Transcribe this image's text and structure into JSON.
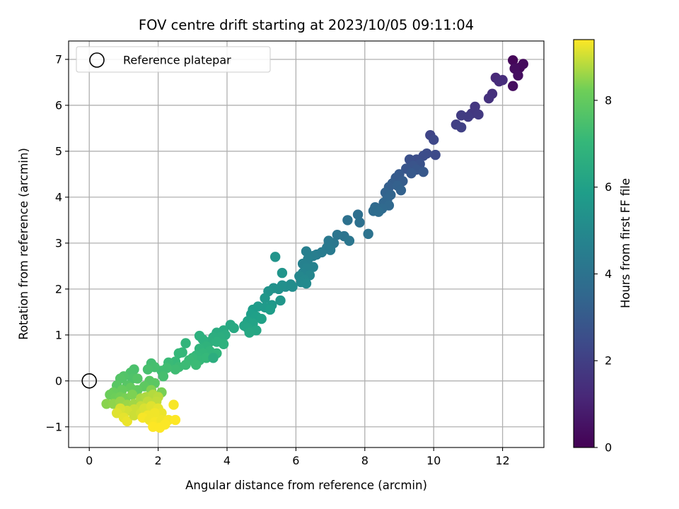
{
  "chart_data": {
    "type": "scatter",
    "title": "FOV centre drift starting at 2023/10/05 09:11:04",
    "xlabel": "Angular distance from reference (arcmin)",
    "ylabel": "Rotation from reference (arcmin)",
    "xlim": [
      -0.6,
      13.2
    ],
    "ylim": [
      -1.45,
      7.4
    ],
    "xticks": [
      0,
      2,
      4,
      6,
      8,
      10,
      12
    ],
    "yticks": [
      -1,
      0,
      1,
      2,
      3,
      4,
      5,
      6,
      7
    ],
    "grid": true,
    "legend": {
      "placement": "top-left",
      "entries": [
        "Reference platepar"
      ]
    },
    "reference_point": {
      "x": 0,
      "y": 0
    },
    "colorbar": {
      "label": "Hours from first FF file",
      "colormap": "viridis",
      "range": [
        0,
        9.4
      ],
      "ticks": [
        0,
        2,
        4,
        6,
        8
      ]
    },
    "series": [
      {
        "points": [
          [
            12.3,
            6.98
          ],
          [
            12.5,
            6.82
          ],
          [
            12.6,
            6.9
          ],
          [
            12.35,
            6.8
          ],
          [
            12.45,
            6.65
          ],
          [
            12.3,
            6.42
          ],
          [
            11.8,
            6.6
          ],
          [
            11.9,
            6.52
          ],
          [
            12.0,
            6.55
          ],
          [
            11.7,
            6.25
          ],
          [
            11.6,
            6.15
          ],
          [
            11.2,
            5.97
          ],
          [
            11.1,
            5.82
          ],
          [
            11.3,
            5.8
          ],
          [
            11.0,
            5.75
          ],
          [
            10.8,
            5.78
          ],
          [
            10.65,
            5.58
          ],
          [
            10.8,
            5.52
          ],
          [
            9.9,
            5.35
          ],
          [
            10.0,
            5.25
          ],
          [
            10.05,
            4.92
          ],
          [
            9.8,
            4.95
          ],
          [
            9.7,
            4.9
          ],
          [
            9.5,
            4.82
          ],
          [
            9.3,
            4.82
          ],
          [
            9.6,
            4.72
          ],
          [
            9.4,
            4.68
          ],
          [
            9.2,
            4.62
          ],
          [
            9.5,
            4.6
          ],
          [
            9.7,
            4.55
          ],
          [
            9.35,
            4.52
          ],
          [
            9.0,
            4.5
          ],
          [
            8.9,
            4.42
          ],
          [
            9.1,
            4.35
          ],
          [
            8.8,
            4.3
          ],
          [
            8.7,
            4.22
          ],
          [
            8.95,
            4.25
          ],
          [
            9.05,
            4.15
          ],
          [
            8.6,
            4.1
          ],
          [
            8.75,
            4.05
          ],
          [
            8.65,
            3.95
          ],
          [
            8.55,
            3.88
          ],
          [
            8.7,
            3.82
          ],
          [
            8.5,
            3.75
          ],
          [
            8.3,
            3.78
          ],
          [
            8.25,
            3.7
          ],
          [
            8.4,
            3.68
          ],
          [
            7.8,
            3.62
          ],
          [
            7.85,
            3.45
          ],
          [
            7.5,
            3.5
          ],
          [
            8.1,
            3.2
          ],
          [
            7.4,
            3.15
          ],
          [
            7.2,
            3.18
          ],
          [
            7.55,
            3.05
          ],
          [
            7.1,
            3.0
          ],
          [
            6.95,
            3.05
          ],
          [
            6.9,
            2.9
          ],
          [
            7.0,
            2.85
          ],
          [
            6.75,
            2.8
          ],
          [
            6.6,
            2.75
          ],
          [
            6.5,
            2.72
          ],
          [
            6.3,
            2.82
          ],
          [
            6.35,
            2.65
          ],
          [
            6.2,
            2.55
          ],
          [
            6.5,
            2.48
          ],
          [
            6.3,
            2.45
          ],
          [
            6.2,
            2.35
          ],
          [
            6.4,
            2.3
          ],
          [
            6.1,
            2.28
          ],
          [
            6.25,
            2.2
          ],
          [
            6.15,
            2.15
          ],
          [
            6.3,
            2.12
          ],
          [
            5.85,
            2.1
          ],
          [
            5.9,
            2.05
          ],
          [
            5.7,
            2.05
          ],
          [
            5.6,
            2.08
          ],
          [
            5.5,
            2.0
          ],
          [
            5.35,
            2.02
          ],
          [
            5.2,
            1.95
          ],
          [
            5.4,
            2.7
          ],
          [
            5.6,
            2.35
          ],
          [
            5.55,
            1.75
          ],
          [
            5.1,
            1.8
          ],
          [
            5.3,
            1.65
          ],
          [
            5.1,
            1.6
          ],
          [
            4.9,
            1.62
          ],
          [
            4.75,
            1.55
          ],
          [
            5.25,
            1.55
          ],
          [
            4.7,
            1.45
          ],
          [
            4.85,
            1.4
          ],
          [
            5.0,
            1.35
          ],
          [
            4.6,
            1.3
          ],
          [
            4.75,
            1.25
          ],
          [
            4.5,
            1.2
          ],
          [
            4.6,
            1.15
          ],
          [
            4.85,
            1.1
          ],
          [
            4.65,
            1.05
          ],
          [
            4.1,
            1.22
          ],
          [
            4.2,
            1.15
          ],
          [
            3.9,
            1.1
          ],
          [
            3.7,
            1.05
          ],
          [
            3.95,
            1.0
          ],
          [
            3.8,
            0.95
          ],
          [
            3.6,
            0.95
          ],
          [
            3.5,
            0.85
          ],
          [
            3.3,
            0.9
          ],
          [
            3.7,
            0.85
          ],
          [
            3.9,
            0.8
          ],
          [
            3.4,
            0.75
          ],
          [
            3.2,
            0.7
          ],
          [
            3.5,
            0.65
          ],
          [
            3.7,
            0.6
          ],
          [
            3.3,
            0.6
          ],
          [
            3.1,
            0.55
          ],
          [
            3.2,
            0.45
          ],
          [
            3.4,
            0.5
          ],
          [
            3.0,
            0.5
          ],
          [
            2.9,
            0.45
          ],
          [
            3.1,
            0.35
          ],
          [
            2.8,
            0.35
          ],
          [
            3.2,
            0.98
          ],
          [
            2.8,
            0.82
          ],
          [
            2.7,
            0.62
          ],
          [
            2.6,
            0.6
          ],
          [
            3.6,
            0.5
          ],
          [
            2.5,
            0.42
          ],
          [
            2.3,
            0.4
          ],
          [
            2.6,
            0.3
          ],
          [
            2.5,
            0.25
          ],
          [
            2.25,
            0.28
          ],
          [
            2.1,
            0.22
          ],
          [
            1.8,
            0.38
          ],
          [
            1.9,
            0.3
          ],
          [
            1.7,
            0.25
          ],
          [
            1.3,
            0.25
          ],
          [
            1.2,
            0.18
          ],
          [
            1.25,
            0.05
          ],
          [
            1.0,
            0.1
          ],
          [
            0.9,
            0.05
          ],
          [
            1.4,
            0.05
          ],
          [
            1.1,
            -0.1
          ],
          [
            0.8,
            -0.1
          ],
          [
            2.15,
            0.1
          ],
          [
            1.75,
            0.0
          ],
          [
            1.9,
            -0.05
          ],
          [
            1.6,
            -0.12
          ],
          [
            1.4,
            -0.2
          ],
          [
            1.2,
            -0.15
          ],
          [
            0.95,
            -0.2
          ],
          [
            0.7,
            -0.25
          ],
          [
            0.6,
            -0.3
          ],
          [
            0.75,
            -0.38
          ],
          [
            0.9,
            -0.35
          ],
          [
            1.05,
            -0.38
          ],
          [
            1.25,
            -0.3
          ],
          [
            2.1,
            -0.25
          ],
          [
            1.8,
            -0.2
          ],
          [
            0.5,
            -0.5
          ],
          [
            0.7,
            -0.5
          ],
          [
            0.9,
            -0.45
          ],
          [
            1.1,
            -0.52
          ],
          [
            1.3,
            -0.5
          ],
          [
            1.5,
            -0.38
          ],
          [
            1.65,
            -0.35
          ],
          [
            1.85,
            -0.3
          ],
          [
            2.0,
            -0.35
          ],
          [
            1.95,
            -0.45
          ],
          [
            1.7,
            -0.45
          ],
          [
            1.5,
            -0.55
          ],
          [
            1.3,
            -0.62
          ],
          [
            1.1,
            -0.65
          ],
          [
            0.9,
            -0.6
          ],
          [
            0.8,
            -0.7
          ],
          [
            1.0,
            -0.8
          ],
          [
            1.1,
            -0.88
          ],
          [
            1.3,
            -0.75
          ],
          [
            1.5,
            -0.7
          ],
          [
            1.6,
            -0.6
          ],
          [
            1.8,
            -0.55
          ],
          [
            2.0,
            -0.6
          ],
          [
            2.1,
            -0.7
          ],
          [
            1.9,
            -0.7
          ],
          [
            1.7,
            -0.75
          ],
          [
            1.55,
            -0.8
          ],
          [
            1.75,
            -0.85
          ],
          [
            1.9,
            -0.9
          ],
          [
            2.1,
            -0.85
          ],
          [
            2.3,
            -0.85
          ],
          [
            2.5,
            -0.85
          ],
          [
            2.45,
            -0.52
          ],
          [
            1.85,
            -1.0
          ],
          [
            2.05,
            -1.02
          ],
          [
            2.2,
            -0.95
          ]
        ],
        "hours": [
          0.15,
          0.2,
          0.3,
          0.35,
          0.4,
          0.35,
          1.2,
          1.3,
          1.35,
          1.45,
          1.5,
          1.7,
          1.75,
          1.8,
          1.85,
          1.9,
          2.0,
          2.05,
          2.2,
          2.3,
          2.4,
          2.45,
          2.5,
          2.55,
          2.6,
          2.7,
          2.75,
          2.8,
          2.85,
          2.9,
          2.95,
          3.0,
          3.05,
          3.1,
          3.15,
          3.2,
          3.25,
          3.3,
          3.35,
          3.4,
          3.45,
          3.5,
          3.55,
          3.6,
          3.65,
          3.7,
          3.75,
          3.85,
          3.9,
          3.95,
          4.0,
          4.05,
          4.1,
          4.15,
          4.2,
          4.25,
          4.3,
          4.35,
          4.4,
          4.45,
          4.5,
          4.55,
          4.6,
          4.65,
          4.7,
          4.75,
          4.8,
          4.85,
          4.9,
          4.95,
          5.0,
          5.05,
          5.1,
          5.15,
          5.2,
          5.25,
          5.3,
          5.35,
          5.4,
          5.45,
          5.5,
          5.55,
          5.6,
          5.65,
          5.7,
          5.75,
          5.8,
          5.85,
          5.9,
          5.95,
          6.0,
          6.05,
          6.1,
          6.15,
          6.2,
          6.25,
          6.3,
          6.35,
          6.4,
          6.45,
          6.5,
          6.55,
          6.6,
          6.6,
          6.65,
          6.7,
          6.7,
          6.75,
          6.8,
          6.85,
          6.9,
          6.9,
          6.95,
          7.0,
          7.05,
          7.05,
          7.1,
          7.15,
          7.2,
          7.2,
          6.7,
          6.9,
          7.0,
          7.05,
          6.6,
          7.1,
          7.15,
          7.2,
          7.25,
          7.3,
          7.3,
          7.35,
          7.4,
          7.45,
          7.5,
          7.55,
          7.6,
          7.65,
          7.7,
          7.7,
          7.75,
          7.8,
          7.4,
          7.8,
          7.85,
          7.9,
          7.95,
          8.0,
          8.05,
          8.1,
          8.15,
          8.2,
          8.25,
          8.3,
          8.35,
          8.3,
          8.4,
          8.45,
          8.5,
          8.55,
          8.6,
          8.65,
          8.7,
          8.75,
          8.8,
          8.85,
          8.9,
          8.9,
          8.95,
          9.0,
          9.05,
          9.1,
          9.15,
          9.2,
          9.25,
          9.0,
          9.05,
          9.1,
          9.15,
          9.2,
          9.25,
          9.3,
          9.3,
          9.35,
          9.3,
          9.35,
          9.3,
          9.35,
          9.4,
          9.35,
          9.4,
          9.4,
          9.38
        ]
      }
    ]
  }
}
